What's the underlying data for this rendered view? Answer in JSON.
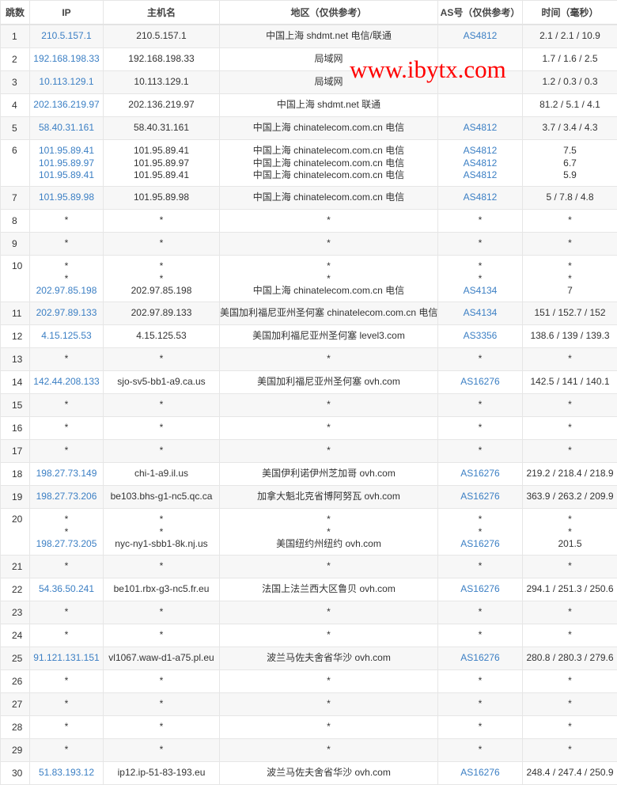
{
  "headers": [
    "跳数",
    "IP",
    "主机名",
    "地区（仅供参考）",
    "AS号（仅供参考）",
    "时间（毫秒）"
  ],
  "colors": {
    "link": "#3b7fc4",
    "watermark": "#ff0000",
    "row_alt": "#f7f7f7"
  },
  "watermark": "www.ibytx.com",
  "rows": [
    {
      "hop": "1",
      "lines": [
        {
          "ip": "210.5.157.1",
          "host": "210.5.157.1",
          "loc": "中国上海 shdmt.net 电信/联通",
          "as": "AS4812",
          "time": "2.1 / 2.1 / 10.9"
        }
      ]
    },
    {
      "hop": "2",
      "lines": [
        {
          "ip": "192.168.198.33",
          "host": "192.168.198.33",
          "loc": "局域网",
          "as": "",
          "time": "1.7 / 1.6 / 2.5"
        }
      ]
    },
    {
      "hop": "3",
      "lines": [
        {
          "ip": "10.113.129.1",
          "host": "10.113.129.1",
          "loc": "局域网",
          "as": "",
          "time": "1.2 / 0.3 / 0.3"
        }
      ]
    },
    {
      "hop": "4",
      "lines": [
        {
          "ip": "202.136.219.97",
          "host": "202.136.219.97",
          "loc": "中国上海 shdmt.net 联通",
          "as": "",
          "time": "81.2 / 5.1 / 4.1"
        }
      ]
    },
    {
      "hop": "5",
      "lines": [
        {
          "ip": "58.40.31.161",
          "host": "58.40.31.161",
          "loc": "中国上海 chinatelecom.com.cn 电信",
          "as": "AS4812",
          "time": "3.7 / 3.4 / 4.3"
        }
      ]
    },
    {
      "hop": "6",
      "lines": [
        {
          "ip": "101.95.89.41",
          "host": "101.95.89.41",
          "loc": "中国上海 chinatelecom.com.cn 电信",
          "as": "AS4812",
          "time": "7.5"
        },
        {
          "ip": "101.95.89.97",
          "host": "101.95.89.97",
          "loc": "中国上海 chinatelecom.com.cn 电信",
          "as": "AS4812",
          "time": "6.7"
        },
        {
          "ip": "101.95.89.41",
          "host": "101.95.89.41",
          "loc": "中国上海 chinatelecom.com.cn 电信",
          "as": "AS4812",
          "time": "5.9"
        }
      ]
    },
    {
      "hop": "7",
      "lines": [
        {
          "ip": "101.95.89.98",
          "host": "101.95.89.98",
          "loc": "中国上海 chinatelecom.com.cn 电信",
          "as": "AS4812",
          "time": "5 / 7.8 / 4.8"
        }
      ]
    },
    {
      "hop": "8",
      "lines": [
        {
          "ip": "*",
          "host": "*",
          "loc": "*",
          "as": "*",
          "time": "*"
        }
      ]
    },
    {
      "hop": "9",
      "lines": [
        {
          "ip": "*",
          "host": "*",
          "loc": "*",
          "as": "*",
          "time": "*"
        }
      ]
    },
    {
      "hop": "10",
      "lines": [
        {
          "ip": "*",
          "host": "*",
          "loc": "*",
          "as": "*",
          "time": "*"
        },
        {
          "ip": "*",
          "host": "*",
          "loc": "*",
          "as": "*",
          "time": "*"
        },
        {
          "ip": "202.97.85.198",
          "host": "202.97.85.198",
          "loc": "中国上海 chinatelecom.com.cn 电信",
          "as": "AS4134",
          "time": "7"
        }
      ]
    },
    {
      "hop": "11",
      "lines": [
        {
          "ip": "202.97.89.133",
          "host": "202.97.89.133",
          "loc": "美国加利福尼亚州圣何塞 chinatelecom.com.cn 电信",
          "as": "AS4134",
          "time": "151 / 152.7 / 152"
        }
      ]
    },
    {
      "hop": "12",
      "lines": [
        {
          "ip": "4.15.125.53",
          "host": "4.15.125.53",
          "loc": "美国加利福尼亚州圣何塞 level3.com",
          "as": "AS3356",
          "time": "138.6 / 139 / 139.3"
        }
      ]
    },
    {
      "hop": "13",
      "lines": [
        {
          "ip": "*",
          "host": "*",
          "loc": "*",
          "as": "*",
          "time": "*"
        }
      ]
    },
    {
      "hop": "14",
      "lines": [
        {
          "ip": "142.44.208.133",
          "host": "sjo-sv5-bb1-a9.ca.us",
          "loc": "美国加利福尼亚州圣何塞 ovh.com",
          "as": "AS16276",
          "time": "142.5 / 141 / 140.1"
        }
      ]
    },
    {
      "hop": "15",
      "lines": [
        {
          "ip": "*",
          "host": "*",
          "loc": "*",
          "as": "*",
          "time": "*"
        }
      ]
    },
    {
      "hop": "16",
      "lines": [
        {
          "ip": "*",
          "host": "*",
          "loc": "*",
          "as": "*",
          "time": "*"
        }
      ]
    },
    {
      "hop": "17",
      "lines": [
        {
          "ip": "*",
          "host": "*",
          "loc": "*",
          "as": "*",
          "time": "*"
        }
      ]
    },
    {
      "hop": "18",
      "lines": [
        {
          "ip": "198.27.73.149",
          "host": "chi-1-a9.il.us",
          "loc": "美国伊利诺伊州芝加哥 ovh.com",
          "as": "AS16276",
          "time": "219.2 / 218.4 / 218.9"
        }
      ]
    },
    {
      "hop": "19",
      "lines": [
        {
          "ip": "198.27.73.206",
          "host": "be103.bhs-g1-nc5.qc.ca",
          "loc": "加拿大魁北克省博阿努瓦 ovh.com",
          "as": "AS16276",
          "time": "363.9 / 263.2 / 209.9"
        }
      ]
    },
    {
      "hop": "20",
      "lines": [
        {
          "ip": "*",
          "host": "*",
          "loc": "*",
          "as": "*",
          "time": "*"
        },
        {
          "ip": "*",
          "host": "*",
          "loc": "*",
          "as": "*",
          "time": "*"
        },
        {
          "ip": "198.27.73.205",
          "host": "nyc-ny1-sbb1-8k.nj.us",
          "loc": "美国纽约州纽约 ovh.com",
          "as": "AS16276",
          "time": "201.5"
        }
      ]
    },
    {
      "hop": "21",
      "lines": [
        {
          "ip": "*",
          "host": "*",
          "loc": "*",
          "as": "*",
          "time": "*"
        }
      ]
    },
    {
      "hop": "22",
      "lines": [
        {
          "ip": "54.36.50.241",
          "host": "be101.rbx-g3-nc5.fr.eu",
          "loc": "法国上法兰西大区鲁贝 ovh.com",
          "as": "AS16276",
          "time": "294.1 / 251.3 / 250.6"
        }
      ]
    },
    {
      "hop": "23",
      "lines": [
        {
          "ip": "*",
          "host": "*",
          "loc": "*",
          "as": "*",
          "time": "*"
        }
      ]
    },
    {
      "hop": "24",
      "lines": [
        {
          "ip": "*",
          "host": "*",
          "loc": "*",
          "as": "*",
          "time": "*"
        }
      ]
    },
    {
      "hop": "25",
      "lines": [
        {
          "ip": "91.121.131.151",
          "host": "vl1067.waw-d1-a75.pl.eu",
          "loc": "波兰马佐夫舍省华沙 ovh.com",
          "as": "AS16276",
          "time": "280.8 / 280.3 / 279.6"
        }
      ]
    },
    {
      "hop": "26",
      "lines": [
        {
          "ip": "*",
          "host": "*",
          "loc": "*",
          "as": "*",
          "time": "*"
        }
      ]
    },
    {
      "hop": "27",
      "lines": [
        {
          "ip": "*",
          "host": "*",
          "loc": "*",
          "as": "*",
          "time": "*"
        }
      ]
    },
    {
      "hop": "28",
      "lines": [
        {
          "ip": "*",
          "host": "*",
          "loc": "*",
          "as": "*",
          "time": "*"
        }
      ]
    },
    {
      "hop": "29",
      "lines": [
        {
          "ip": "*",
          "host": "*",
          "loc": "*",
          "as": "*",
          "time": "*"
        }
      ]
    },
    {
      "hop": "30",
      "lines": [
        {
          "ip": "51.83.193.12",
          "host": "ip12.ip-51-83-193.eu",
          "loc": "波兰马佐夫舍省华沙 ovh.com",
          "as": "AS16276",
          "time": "248.4 / 247.4 / 250.9"
        }
      ]
    }
  ]
}
